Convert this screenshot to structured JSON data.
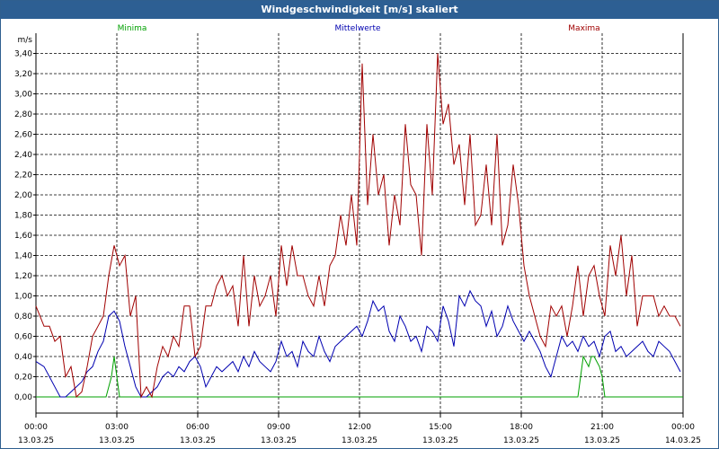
{
  "window": {
    "title": "Windgeschwindigkeit [m/s] skaliert"
  },
  "chart_data": {
    "type": "line",
    "title": "Windgeschwindigkeit [m/s] skaliert",
    "ylabel": "m/s",
    "ylim": [
      0.0,
      3.6
    ],
    "yticks": [
      "0,00",
      "0,20",
      "0,40",
      "0,60",
      "0,80",
      "1,00",
      "1,20",
      "1,40",
      "1,60",
      "1,80",
      "2,00",
      "2,20",
      "2,40",
      "2,60",
      "2,80",
      "3,00",
      "3,20",
      "3,40"
    ],
    "xticks": [
      {
        "time": "00:00",
        "date": "13.03.25"
      },
      {
        "time": "03:00",
        "date": "13.03.25"
      },
      {
        "time": "06:00",
        "date": "13.03.25"
      },
      {
        "time": "09:00",
        "date": "13.03.25"
      },
      {
        "time": "12:00",
        "date": "13.03.25"
      },
      {
        "time": "15:00",
        "date": "13.03.25"
      },
      {
        "time": "18:00",
        "date": "13.03.25"
      },
      {
        "time": "21:00",
        "date": "13.03.25"
      },
      {
        "time": "00:00",
        "date": "14.03.25"
      }
    ],
    "x_unit": "hours since 13.03.25 00:00",
    "xlim": [
      0,
      24
    ],
    "series": [
      {
        "name": "Minima",
        "color": "#00a000",
        "x": [
          0,
          2.6,
          2.8,
          2.9,
          3.0,
          3.1,
          20.0,
          20.1,
          20.2,
          20.3,
          20.4,
          20.5,
          20.6,
          20.7,
          20.8,
          20.9,
          21.0,
          21.1,
          24
        ],
        "y": [
          0,
          0,
          0.2,
          0.4,
          0.2,
          0,
          0,
          0,
          0.2,
          0.4,
          0.35,
          0.3,
          0.4,
          0.4,
          0.35,
          0.3,
          0.2,
          0,
          0
        ]
      },
      {
        "name": "Mittelwerte",
        "color": "#0000b0",
        "x": [
          0,
          0.3,
          0.5,
          0.7,
          0.9,
          1.1,
          1.3,
          1.5,
          1.7,
          1.9,
          2.1,
          2.3,
          2.5,
          2.7,
          2.9,
          3.1,
          3.3,
          3.5,
          3.7,
          3.9,
          4.1,
          4.3,
          4.5,
          4.7,
          4.9,
          5.1,
          5.3,
          5.5,
          5.7,
          5.9,
          6.1,
          6.3,
          6.5,
          6.7,
          6.9,
          7.1,
          7.3,
          7.5,
          7.7,
          7.9,
          8.1,
          8.3,
          8.5,
          8.7,
          8.9,
          9.1,
          9.3,
          9.5,
          9.7,
          9.9,
          10.1,
          10.3,
          10.5,
          10.7,
          10.9,
          11.1,
          11.3,
          11.5,
          11.7,
          11.9,
          12.1,
          12.3,
          12.5,
          12.7,
          12.9,
          13.1,
          13.3,
          13.5,
          13.7,
          13.9,
          14.1,
          14.3,
          14.5,
          14.7,
          14.9,
          15.1,
          15.3,
          15.5,
          15.7,
          15.9,
          16.1,
          16.3,
          16.5,
          16.7,
          16.9,
          17.1,
          17.3,
          17.5,
          17.7,
          17.9,
          18.1,
          18.3,
          18.5,
          18.7,
          18.9,
          19.1,
          19.3,
          19.5,
          19.7,
          19.9,
          20.1,
          20.3,
          20.5,
          20.7,
          20.9,
          21.1,
          21.3,
          21.5,
          21.7,
          21.9,
          22.1,
          22.3,
          22.5,
          22.7,
          22.9,
          23.1,
          23.3,
          23.5,
          23.7,
          23.9
        ],
        "y": [
          0.35,
          0.3,
          0.2,
          0.1,
          0.0,
          0.0,
          0.05,
          0.1,
          0.15,
          0.25,
          0.3,
          0.45,
          0.55,
          0.8,
          0.85,
          0.75,
          0.5,
          0.3,
          0.1,
          0.0,
          0.0,
          0.05,
          0.1,
          0.2,
          0.25,
          0.2,
          0.3,
          0.25,
          0.35,
          0.4,
          0.3,
          0.1,
          0.2,
          0.3,
          0.25,
          0.3,
          0.35,
          0.25,
          0.4,
          0.3,
          0.45,
          0.35,
          0.3,
          0.25,
          0.35,
          0.55,
          0.4,
          0.45,
          0.3,
          0.55,
          0.45,
          0.4,
          0.6,
          0.45,
          0.35,
          0.5,
          0.55,
          0.6,
          0.65,
          0.7,
          0.6,
          0.75,
          0.95,
          0.85,
          0.9,
          0.65,
          0.55,
          0.8,
          0.7,
          0.55,
          0.6,
          0.45,
          0.7,
          0.65,
          0.55,
          0.9,
          0.75,
          0.5,
          1.0,
          0.9,
          1.05,
          0.95,
          0.9,
          0.7,
          0.85,
          0.6,
          0.7,
          0.9,
          0.75,
          0.65,
          0.55,
          0.65,
          0.55,
          0.45,
          0.3,
          0.2,
          0.4,
          0.6,
          0.5,
          0.55,
          0.45,
          0.6,
          0.5,
          0.55,
          0.4,
          0.6,
          0.65,
          0.45,
          0.5,
          0.4,
          0.45,
          0.5,
          0.55,
          0.45,
          0.4,
          0.55,
          0.5,
          0.45,
          0.35,
          0.25
        ]
      },
      {
        "name": "Maxima",
        "color": "#a00000",
        "x": [
          0,
          0.3,
          0.5,
          0.7,
          0.9,
          1.1,
          1.3,
          1.5,
          1.7,
          1.9,
          2.1,
          2.3,
          2.5,
          2.7,
          2.9,
          3.1,
          3.3,
          3.5,
          3.7,
          3.9,
          4.1,
          4.3,
          4.5,
          4.7,
          4.9,
          5.1,
          5.3,
          5.5,
          5.7,
          5.9,
          6.1,
          6.3,
          6.5,
          6.7,
          6.9,
          7.1,
          7.3,
          7.5,
          7.7,
          7.9,
          8.1,
          8.3,
          8.5,
          8.7,
          8.9,
          9.1,
          9.3,
          9.5,
          9.7,
          9.9,
          10.1,
          10.3,
          10.5,
          10.7,
          10.9,
          11.1,
          11.3,
          11.5,
          11.7,
          11.9,
          12.1,
          12.3,
          12.5,
          12.7,
          12.9,
          13.1,
          13.3,
          13.5,
          13.7,
          13.9,
          14.1,
          14.3,
          14.5,
          14.7,
          14.9,
          15.1,
          15.3,
          15.5,
          15.7,
          15.9,
          16.1,
          16.3,
          16.5,
          16.7,
          16.9,
          17.1,
          17.3,
          17.5,
          17.7,
          17.9,
          18.1,
          18.3,
          18.5,
          18.7,
          18.9,
          19.1,
          19.3,
          19.5,
          19.7,
          19.9,
          20.1,
          20.3,
          20.5,
          20.7,
          20.9,
          21.1,
          21.3,
          21.5,
          21.7,
          21.9,
          22.1,
          22.3,
          22.5,
          22.7,
          22.9,
          23.1,
          23.3,
          23.5,
          23.7,
          23.9
        ],
        "y": [
          0.9,
          0.7,
          0.7,
          0.55,
          0.6,
          0.2,
          0.3,
          0.0,
          0.05,
          0.3,
          0.6,
          0.7,
          0.8,
          1.2,
          1.5,
          1.3,
          1.4,
          0.8,
          1.0,
          0.0,
          0.1,
          0.0,
          0.3,
          0.5,
          0.4,
          0.6,
          0.5,
          0.9,
          0.9,
          0.4,
          0.5,
          0.9,
          0.9,
          1.1,
          1.2,
          1.0,
          1.1,
          0.7,
          1.4,
          0.7,
          1.2,
          0.9,
          1.0,
          1.2,
          0.8,
          1.5,
          1.1,
          1.5,
          1.2,
          1.2,
          1.0,
          0.9,
          1.2,
          0.9,
          1.3,
          1.4,
          1.8,
          1.5,
          2.0,
          1.5,
          3.3,
          1.9,
          2.6,
          2.0,
          2.2,
          1.5,
          2.0,
          1.7,
          2.7,
          2.1,
          2.0,
          1.4,
          2.7,
          2.0,
          3.4,
          2.7,
          2.9,
          2.3,
          2.5,
          1.9,
          2.6,
          1.7,
          1.8,
          2.3,
          1.7,
          2.6,
          1.5,
          1.7,
          2.3,
          1.9,
          1.3,
          1.0,
          0.8,
          0.6,
          0.5,
          0.9,
          0.8,
          0.9,
          0.6,
          0.9,
          1.3,
          0.8,
          1.2,
          1.3,
          1.0,
          0.8,
          1.5,
          1.2,
          1.6,
          1.0,
          1.4,
          0.7,
          1.0,
          1.0,
          1.0,
          0.8,
          0.9,
          0.8,
          0.8,
          0.7
        ]
      }
    ],
    "legend": [
      {
        "label": "Minima",
        "color": "#00a000",
        "placement": "left"
      },
      {
        "label": "Mittelwerte",
        "color": "#0000b0",
        "placement": "center"
      },
      {
        "label": "Maxima",
        "color": "#a00000",
        "placement": "right"
      }
    ],
    "grid": true
  }
}
